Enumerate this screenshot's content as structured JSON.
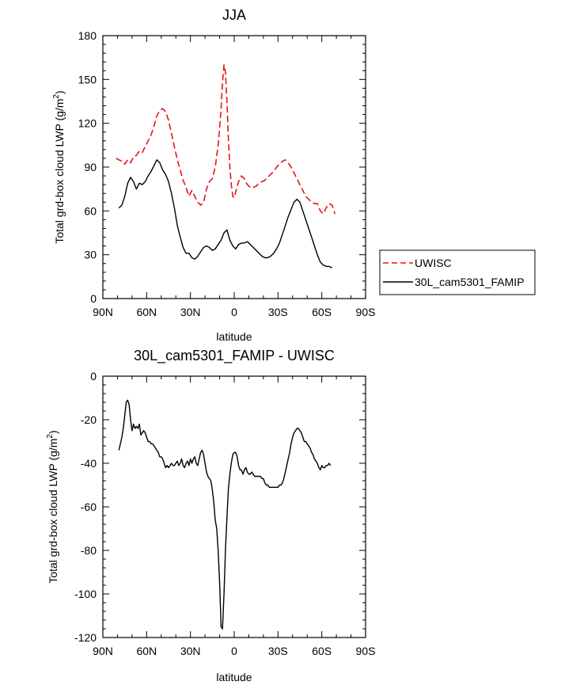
{
  "chart_data": [
    {
      "type": "line",
      "title": "JJA",
      "xlabel": "latitude",
      "ylabel": "Total grd-box cloud LWP (g/m",
      "ylabel_sup": "2",
      "ylabel_tail": ")",
      "xlim": [
        -90,
        90
      ],
      "ylim": [
        0,
        180
      ],
      "xticks": [
        -90,
        -60,
        -30,
        0,
        30,
        60,
        90
      ],
      "xtick_labels": [
        "90N",
        "60N",
        "30N",
        "0",
        "30S",
        "60S",
        "90S"
      ],
      "yticks": [
        0,
        30,
        60,
        90,
        120,
        150,
        180
      ],
      "ytick_labels": [
        "0",
        "30",
        "60",
        "90",
        "120",
        "150",
        "180"
      ],
      "grid": false,
      "legend": "right",
      "series": [
        {
          "name": "UWISC",
          "color": "#e8141b",
          "dash": "dashed",
          "x": [
            -81,
            -79,
            -77,
            -75,
            -73,
            -71,
            -69,
            -67,
            -65,
            -63,
            -61,
            -59,
            -57,
            -55,
            -53,
            -51,
            -49,
            -47,
            -45,
            -43,
            -41,
            -39,
            -37,
            -35,
            -33,
            -31,
            -29,
            -27,
            -25,
            -23,
            -21,
            -19,
            -17,
            -15,
            -13,
            -11,
            -10,
            -9,
            -8,
            -7,
            -6,
            -5,
            -4,
            -3,
            -2,
            -1,
            0,
            1,
            3,
            5,
            7,
            9,
            11,
            13,
            15,
            17,
            19,
            21,
            23,
            25,
            27,
            29,
            31,
            33,
            35,
            37,
            39,
            41,
            43,
            45,
            47,
            49,
            51,
            53,
            55,
            57,
            59,
            61,
            63,
            65,
            67,
            69
          ],
          "y": [
            96,
            95,
            94,
            92,
            95,
            93,
            97,
            98,
            101,
            100,
            104,
            108,
            112,
            118,
            125,
            129,
            130,
            128,
            122,
            113,
            104,
            95,
            88,
            81,
            76,
            70,
            74,
            70,
            66,
            64,
            66,
            75,
            80,
            82,
            90,
            105,
            117,
            130,
            148,
            160,
            155,
            135,
            110,
            90,
            78,
            70,
            69,
            73,
            80,
            84,
            82,
            78,
            76,
            76,
            77,
            79,
            80,
            81,
            83,
            85,
            87,
            90,
            92,
            94,
            95,
            93,
            90,
            86,
            82,
            78,
            74,
            70,
            68,
            66,
            65,
            65,
            60,
            58,
            62,
            65,
            64,
            58
          ]
        },
        {
          "name": "30L_cam5301_FAMIP",
          "color": "#000000",
          "dash": "solid",
          "x": [
            -79,
            -77,
            -75,
            -73,
            -71,
            -69,
            -67,
            -65,
            -63,
            -61,
            -59,
            -57,
            -55,
            -53,
            -51,
            -49,
            -47,
            -45,
            -43,
            -41,
            -39,
            -37,
            -35,
            -33,
            -31,
            -29,
            -27,
            -25,
            -23,
            -21,
            -19,
            -17,
            -15,
            -13,
            -11,
            -9,
            -7,
            -5,
            -3,
            -1,
            1,
            3,
            5,
            7,
            9,
            11,
            13,
            15,
            17,
            19,
            21,
            23,
            25,
            27,
            29,
            31,
            33,
            35,
            37,
            39,
            41,
            43,
            45,
            47,
            49,
            51,
            53,
            55,
            57,
            59,
            61,
            63,
            65,
            67
          ],
          "y": [
            62,
            64,
            70,
            79,
            83,
            80,
            75,
            79,
            78,
            80,
            84,
            87,
            91,
            95,
            93,
            88,
            85,
            80,
            72,
            62,
            50,
            42,
            35,
            31,
            31,
            28,
            27,
            29,
            32,
            35,
            36,
            35,
            33,
            34,
            37,
            40,
            45,
            47,
            40,
            36,
            34,
            37,
            38,
            38,
            39,
            37,
            35,
            33,
            31,
            29,
            28,
            28,
            29,
            31,
            34,
            38,
            44,
            50,
            56,
            61,
            66,
            68,
            66,
            60,
            54,
            48,
            42,
            36,
            30,
            25,
            23,
            22,
            22,
            21
          ]
        }
      ]
    },
    {
      "type": "line",
      "title": "30L_cam5301_FAMIP - UWISC",
      "xlabel": "latitude",
      "ylabel": "Total grd-box cloud LWP (g/m",
      "ylabel_sup": "2",
      "ylabel_tail": ")",
      "xlim": [
        -90,
        90
      ],
      "ylim": [
        -120,
        0
      ],
      "xticks": [
        -90,
        -60,
        -30,
        0,
        30,
        60,
        90
      ],
      "xtick_labels": [
        "90N",
        "60N",
        "30N",
        "0",
        "30S",
        "60S",
        "90S"
      ],
      "yticks": [
        -120,
        -100,
        -80,
        -60,
        -40,
        -20,
        0
      ],
      "ytick_labels": [
        "-120",
        "-100",
        "-80",
        "-60",
        "-40",
        "-20",
        "0"
      ],
      "grid": false,
      "series": [
        {
          "color": "#000000",
          "dash": "solid",
          "x": [
            -79,
            -77,
            -76,
            -75,
            -74,
            -73,
            -72,
            -71,
            -70,
            -69,
            -68,
            -67,
            -66,
            -65,
            -64,
            -63,
            -62,
            -61,
            -60,
            -59,
            -58,
            -57,
            -56,
            -55,
            -54,
            -53,
            -52,
            -51,
            -50,
            -49,
            -48,
            -47,
            -46,
            -45,
            -44,
            -43,
            -42,
            -41,
            -40,
            -39,
            -38,
            -37,
            -36,
            -35,
            -34,
            -33,
            -32,
            -31,
            -30,
            -29,
            -28,
            -27,
            -26,
            -25,
            -24,
            -23,
            -22,
            -21,
            -20,
            -19,
            -18,
            -17,
            -16,
            -15,
            -14,
            -13,
            -12,
            -11,
            -10,
            -9,
            -8,
            -7,
            -6,
            -5,
            -4,
            -3,
            -2,
            -1,
            0,
            1,
            2,
            3,
            4,
            5,
            6,
            7,
            8,
            9,
            10,
            11,
            12,
            13,
            14,
            15,
            16,
            17,
            18,
            19,
            20,
            21,
            22,
            23,
            24,
            25,
            26,
            27,
            28,
            29,
            30,
            31,
            32,
            33,
            34,
            35,
            36,
            37,
            38,
            39,
            40,
            41,
            42,
            43,
            44,
            45,
            46,
            47,
            48,
            49,
            50,
            51,
            52,
            53,
            54,
            55,
            56,
            57,
            58,
            59,
            60,
            61,
            62,
            63,
            64,
            65,
            66
          ],
          "y": [
            -34,
            -28,
            -24,
            -18,
            -12,
            -11,
            -13,
            -20,
            -25,
            -22,
            -24,
            -23,
            -24,
            -22,
            -27,
            -26,
            -25,
            -26,
            -28,
            -30,
            -30,
            -31,
            -31,
            -32,
            -33,
            -34,
            -35,
            -37,
            -37,
            -38,
            -40,
            -42,
            -41,
            -42,
            -41,
            -40,
            -41,
            -41,
            -40,
            -39,
            -41,
            -40,
            -38,
            -41,
            -42,
            -40,
            -39,
            -41,
            -38,
            -40,
            -38,
            -37,
            -40,
            -41,
            -38,
            -35,
            -34,
            -36,
            -40,
            -44,
            -46,
            -47,
            -48,
            -52,
            -58,
            -66,
            -70,
            -80,
            -95,
            -115,
            -116,
            -100,
            -80,
            -65,
            -52,
            -45,
            -40,
            -36,
            -35,
            -35,
            -37,
            -41,
            -43,
            -43,
            -45,
            -43,
            -42,
            -44,
            -45,
            -45,
            -44,
            -45,
            -46,
            -46,
            -46,
            -46,
            -46,
            -47,
            -47,
            -49,
            -50,
            -50,
            -51,
            -51,
            -51,
            -51,
            -51,
            -51,
            -51,
            -50,
            -50,
            -49,
            -47,
            -44,
            -41,
            -38,
            -35,
            -31,
            -28,
            -26,
            -25,
            -24,
            -24,
            -25,
            -26,
            -28,
            -30,
            -30,
            -31,
            -32,
            -33,
            -35,
            -36,
            -38,
            -39,
            -40,
            -42,
            -43,
            -41,
            -42,
            -42,
            -41,
            -41,
            -40,
            -41
          ]
        }
      ]
    }
  ]
}
